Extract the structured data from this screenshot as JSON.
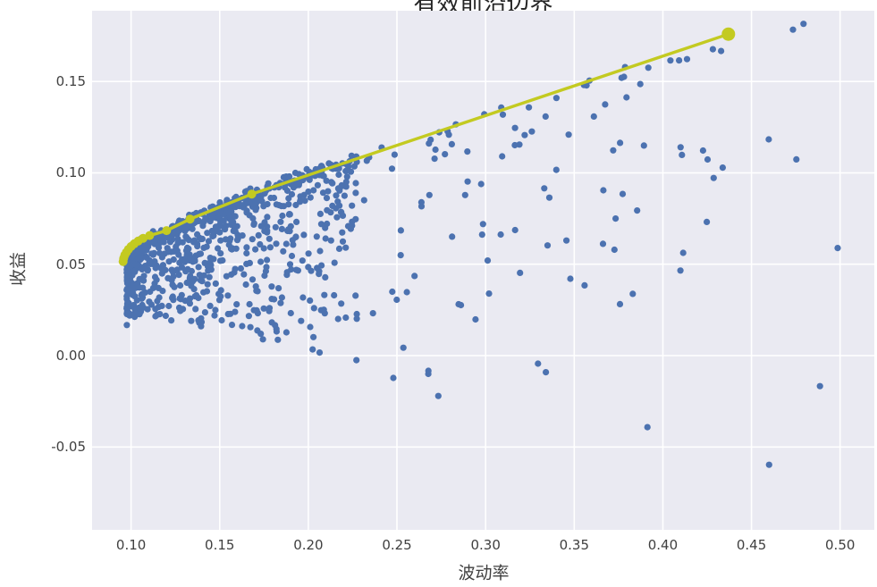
{
  "chart_data": {
    "type": "scatter",
    "title": "有效前沿边界",
    "xlabel": "波动率",
    "ylabel": "收益",
    "grid": true,
    "legend": "none",
    "colors": {
      "plot_background": "#eaeaf2",
      "grid": "#ffffff",
      "tick_text": "#404040",
      "scatter": "#4c72b0",
      "frontier": "#c3ca21"
    },
    "xlim": [
      0.078,
      0.5193
    ],
    "ylim": [
      -0.0953,
      0.1887
    ],
    "xticks": {
      "values": [
        0.1,
        0.15,
        0.2,
        0.25,
        0.3,
        0.35,
        0.4,
        0.45,
        0.5
      ],
      "labels": [
        "0.10",
        "0.15",
        "0.20",
        "0.25",
        "0.30",
        "0.35",
        "0.40",
        "0.45",
        "0.50"
      ]
    },
    "yticks": {
      "values": [
        -0.05,
        0.0,
        0.05,
        0.1,
        0.15
      ],
      "labels": [
        "-0.05",
        "0.00",
        "0.05",
        "0.10",
        "0.15"
      ]
    },
    "series": {
      "frontier": {
        "style": "line+markers",
        "line_width": 3.4,
        "marker_radius": 5,
        "end_marker_radius": 7.5,
        "points": [
          [
            0.0955,
            0.0515
          ],
          [
            0.0958,
            0.0532
          ],
          [
            0.0964,
            0.0549
          ],
          [
            0.0973,
            0.0565
          ],
          [
            0.0985,
            0.0581
          ],
          [
            0.1,
            0.0597
          ],
          [
            0.1018,
            0.0612
          ],
          [
            0.104,
            0.0627
          ],
          [
            0.1068,
            0.0642
          ],
          [
            0.1105,
            0.0657
          ],
          [
            0.12,
            0.0684
          ],
          [
            0.1333,
            0.0747
          ],
          [
            0.1681,
            0.0884
          ],
          [
            0.437,
            0.1759
          ]
        ]
      },
      "portfolios": {
        "style": "scatter",
        "marker_radius": 3.6,
        "count": 960,
        "generator": {
          "seed": 1337,
          "mix": [
            {
              "weight": 0.75,
              "v0": 0.0975,
              "span": 0.13,
              "exp": 1.6
            },
            {
              "weight": 0.2,
              "v0": 0.13,
              "span": 0.25,
              "exp": 1.3
            },
            {
              "weight": 0.05,
              "v0": 0.3,
              "span": 0.2,
              "exp": 1.0
            }
          ],
          "frontier_fit": {
            "a": 0.052,
            "b": 0.291,
            "c": 0.097
          },
          "gap": 0.003,
          "spread_origin": 0.0975,
          "spread_base": 0.035,
          "spread_slope": 0.62,
          "spread_exp": 2.2,
          "jitter": 0.006
        }
      }
    }
  }
}
